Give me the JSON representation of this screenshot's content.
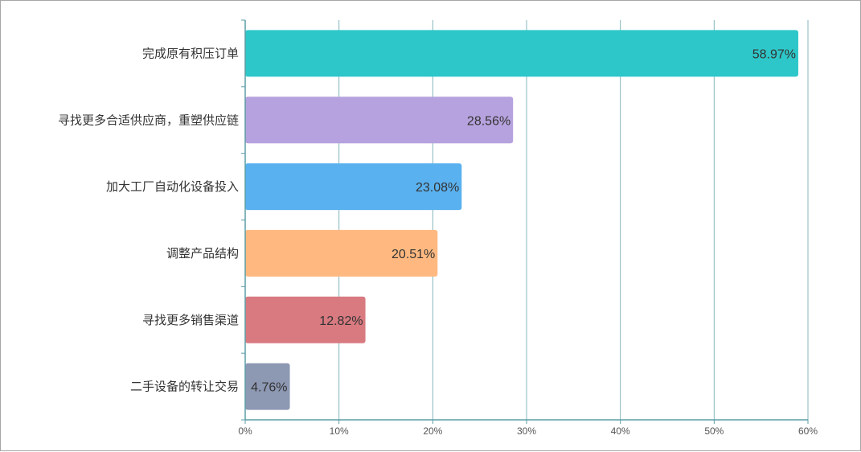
{
  "chart_data": {
    "type": "bar",
    "orientation": "horizontal",
    "categories": [
      "完成原有积压订单",
      "寻找更多合适供应商，重塑供应链",
      "加大工厂自动化设备投入",
      "调整产品结构",
      "寻找更多销售渠道",
      "二手设备的转让交易"
    ],
    "values": [
      58.97,
      28.56,
      23.08,
      20.51,
      12.82,
      4.76
    ],
    "value_labels": [
      "58.97%",
      "28.56%",
      "23.08%",
      "20.51%",
      "12.82%",
      "4.76%"
    ],
    "colors": [
      "#2ec7c9",
      "#b6a2de",
      "#5ab1ef",
      "#ffb980",
      "#d87a80",
      "#8d98b3"
    ],
    "xlim": [
      0,
      60
    ],
    "x_ticks": [
      "0%",
      "10%",
      "20%",
      "30%",
      "40%",
      "50%",
      "60%"
    ],
    "grid": "vertical",
    "axis_color": "#5b9ea6",
    "title": "",
    "xlabel": "",
    "ylabel": ""
  }
}
